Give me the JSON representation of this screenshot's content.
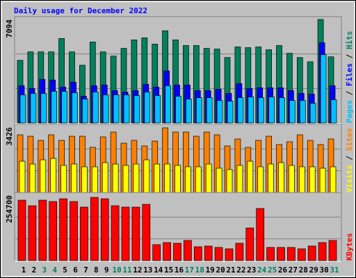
{
  "title": "Daily usage for December 2022",
  "title_color": "#0000ff",
  "legend_separator": "/",
  "chart_data": [
    {
      "type": "bar",
      "ylim": [
        0,
        7094
      ],
      "yticks": [
        7094
      ],
      "series": [
        {
          "name": "Hits",
          "color": "#00805c",
          "values": [
            4295,
            4874,
            4874,
            4874,
            5791,
            4874,
            3957,
            5550,
            4874,
            4585,
            5115,
            5694,
            5839,
            5405,
            6322,
            5694,
            5308,
            5308,
            5115,
            5067,
            4488,
            5212,
            5164,
            5212,
            5019,
            5308,
            4778,
            4488,
            4198,
            7094,
            4536
          ]
        },
        {
          "name": "Files",
          "color": "#0000ff",
          "values": [
            2558,
            2365,
            2992,
            2944,
            2461,
            2799,
            1834,
            2558,
            2606,
            2220,
            2123,
            2220,
            2654,
            2461,
            3571,
            2606,
            2606,
            2220,
            2220,
            2316,
            2027,
            2703,
            2365,
            2413,
            2413,
            2413,
            2220,
            2027,
            1979,
            5502,
            2558
          ]
        },
        {
          "name": "Pages",
          "color": "#00c0ff",
          "values": [
            1930,
            2027,
            2027,
            2172,
            2172,
            2075,
            1641,
            2123,
            1930,
            1930,
            1930,
            1882,
            2123,
            1882,
            2558,
            1834,
            1641,
            1737,
            1737,
            1544,
            1496,
            1737,
            1786,
            1737,
            1786,
            1737,
            1544,
            1544,
            1351,
            4681,
            1593
          ]
        }
      ]
    },
    {
      "type": "bar",
      "ylim": [
        0,
        3426
      ],
      "yticks": [
        3426
      ],
      "series": [
        {
          "name": "Sites",
          "color": "#ff8000",
          "values": [
            3025,
            2952,
            2734,
            3025,
            2734,
            2952,
            2952,
            2369,
            2916,
            3171,
            2588,
            2734,
            2442,
            2697,
            3390,
            3171,
            3171,
            2952,
            3171,
            3025,
            2442,
            2807,
            2369,
            2734,
            2952,
            2515,
            2661,
            3025,
            2734,
            2515,
            2807
          ]
        },
        {
          "name": "Visits",
          "color": "#ffff00",
          "values": [
            1640,
            1494,
            1713,
            1786,
            1422,
            1494,
            1349,
            1349,
            1567,
            1494,
            1422,
            1494,
            1713,
            1494,
            1494,
            1422,
            1349,
            1349,
            1494,
            1276,
            1203,
            1422,
            1640,
            1349,
            1494,
            1567,
            1422,
            1349,
            1349,
            1276,
            1349
          ]
        }
      ]
    },
    {
      "type": "bar",
      "ylim": [
        0,
        254700
      ],
      "yticks": [
        254700
      ],
      "categories": [
        "1",
        "2",
        "3",
        "4",
        "5",
        "6",
        "7",
        "8",
        "9",
        "10",
        "11",
        "12",
        "13",
        "14",
        "15",
        "16",
        "17",
        "18",
        "19",
        "20",
        "21",
        "22",
        "23",
        "24",
        "25",
        "26",
        "27",
        "28",
        "29",
        "30",
        "31"
      ],
      "category_colors": [
        "#000000",
        "#000000",
        "#00805c",
        "#00805c",
        "#000000",
        "#000000",
        "#000000",
        "#000000",
        "#000000",
        "#00805c",
        "#00805c",
        "#000000",
        "#000000",
        "#000000",
        "#000000",
        "#000000",
        "#00805c",
        "#00805c",
        "#000000",
        "#000000",
        "#000000",
        "#000000",
        "#000000",
        "#00805c",
        "#00805c",
        "#000000",
        "#000000",
        "#000000",
        "#000000",
        "#000000",
        "#00805c"
      ],
      "series": [
        {
          "name": "KBytes",
          "color": "#ff0000",
          "values": [
            235735,
            214058,
            235735,
            230316,
            241154,
            230316,
            208639,
            246574,
            241154,
            214058,
            208639,
            208639,
            219478,
            62321,
            70450,
            67740,
            78578,
            54192,
            56902,
            51482,
            46063,
            67740,
            127351,
            203220,
            51482,
            51482,
            51482,
            46063,
            56902,
            70450,
            78578
          ]
        }
      ]
    }
  ]
}
